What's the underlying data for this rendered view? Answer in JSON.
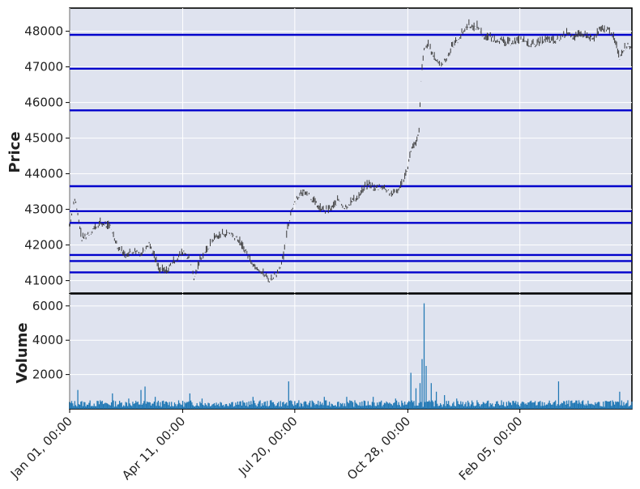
{
  "chart_data": {
    "type": "candlestick-volume",
    "panels": {
      "price": {
        "ylabel": "Price",
        "ylim": [
          40650,
          48650
        ],
        "yticks": [
          41000,
          42000,
          43000,
          44000,
          45000,
          46000,
          47000,
          48000
        ],
        "ytick_labels": [
          "41000",
          "42000",
          "43000",
          "44000",
          "45000",
          "46000",
          "47000",
          "48000"
        ],
        "grid": true,
        "background": "#dfe3ef",
        "line_color": "#3a3a3a",
        "series": [
          {
            "x": 0,
            "y": 42600
          },
          {
            "x": 5,
            "y": 43350
          },
          {
            "x": 12,
            "y": 42200
          },
          {
            "x": 20,
            "y": 42400
          },
          {
            "x": 30,
            "y": 42650
          },
          {
            "x": 40,
            "y": 42550
          },
          {
            "x": 48,
            "y": 41950
          },
          {
            "x": 55,
            "y": 41750
          },
          {
            "x": 62,
            "y": 41850
          },
          {
            "x": 70,
            "y": 41800
          },
          {
            "x": 78,
            "y": 42100
          },
          {
            "x": 82,
            "y": 41800
          },
          {
            "x": 88,
            "y": 41350
          },
          {
            "x": 95,
            "y": 41300
          },
          {
            "x": 103,
            "y": 41600
          },
          {
            "x": 112,
            "y": 41850
          },
          {
            "x": 118,
            "y": 41600
          },
          {
            "x": 122,
            "y": 41050
          },
          {
            "x": 128,
            "y": 41650
          },
          {
            "x": 135,
            "y": 41900
          },
          {
            "x": 142,
            "y": 42250
          },
          {
            "x": 150,
            "y": 42350
          },
          {
            "x": 158,
            "y": 42350
          },
          {
            "x": 165,
            "y": 42200
          },
          {
            "x": 172,
            "y": 41900
          },
          {
            "x": 180,
            "y": 41500
          },
          {
            "x": 188,
            "y": 41300
          },
          {
            "x": 196,
            "y": 41050
          },
          {
            "x": 204,
            "y": 41250
          },
          {
            "x": 210,
            "y": 41700
          },
          {
            "x": 214,
            "y": 42500
          },
          {
            "x": 218,
            "y": 43050
          },
          {
            "x": 224,
            "y": 43400
          },
          {
            "x": 232,
            "y": 43550
          },
          {
            "x": 240,
            "y": 43250
          },
          {
            "x": 246,
            "y": 43050
          },
          {
            "x": 252,
            "y": 43000
          },
          {
            "x": 258,
            "y": 43100
          },
          {
            "x": 264,
            "y": 43300
          },
          {
            "x": 270,
            "y": 43050
          },
          {
            "x": 276,
            "y": 43250
          },
          {
            "x": 282,
            "y": 43350
          },
          {
            "x": 288,
            "y": 43600
          },
          {
            "x": 294,
            "y": 43750
          },
          {
            "x": 300,
            "y": 43600
          },
          {
            "x": 306,
            "y": 43700
          },
          {
            "x": 312,
            "y": 43550
          },
          {
            "x": 318,
            "y": 43450
          },
          {
            "x": 324,
            "y": 43650
          },
          {
            "x": 328,
            "y": 43900
          },
          {
            "x": 332,
            "y": 44250
          },
          {
            "x": 336,
            "y": 44800
          },
          {
            "x": 340,
            "y": 44850
          },
          {
            "x": 343,
            "y": 45200
          },
          {
            "x": 345,
            "y": 46700
          },
          {
            "x": 348,
            "y": 47500
          },
          {
            "x": 352,
            "y": 47700
          },
          {
            "x": 356,
            "y": 47350
          },
          {
            "x": 360,
            "y": 47250
          },
          {
            "x": 364,
            "y": 47050
          },
          {
            "x": 368,
            "y": 47200
          },
          {
            "x": 372,
            "y": 47400
          },
          {
            "x": 376,
            "y": 47650
          },
          {
            "x": 380,
            "y": 47750
          },
          {
            "x": 386,
            "y": 48000
          },
          {
            "x": 392,
            "y": 48250
          },
          {
            "x": 396,
            "y": 48100
          },
          {
            "x": 400,
            "y": 48200
          },
          {
            "x": 406,
            "y": 47900
          },
          {
            "x": 412,
            "y": 47850
          },
          {
            "x": 420,
            "y": 47800
          },
          {
            "x": 428,
            "y": 47700
          },
          {
            "x": 436,
            "y": 47750
          },
          {
            "x": 444,
            "y": 47800
          },
          {
            "x": 452,
            "y": 47650
          },
          {
            "x": 460,
            "y": 47700
          },
          {
            "x": 468,
            "y": 47800
          },
          {
            "x": 476,
            "y": 47750
          },
          {
            "x": 484,
            "y": 47900
          },
          {
            "x": 490,
            "y": 48000
          },
          {
            "x": 496,
            "y": 47850
          },
          {
            "x": 502,
            "y": 47950
          },
          {
            "x": 508,
            "y": 47900
          },
          {
            "x": 514,
            "y": 47800
          },
          {
            "x": 520,
            "y": 48050
          },
          {
            "x": 526,
            "y": 48100
          },
          {
            "x": 532,
            "y": 48000
          },
          {
            "x": 536,
            "y": 47700
          },
          {
            "x": 540,
            "y": 47300
          },
          {
            "x": 544,
            "y": 47550
          },
          {
            "x": 548,
            "y": 47650
          },
          {
            "x": 552,
            "y": 47600
          }
        ],
        "n_points": 553,
        "hlines": [
          47900,
          46950,
          45780,
          43650,
          42950,
          42620,
          41720,
          41550,
          41230
        ],
        "hline_color": "#0000cc"
      },
      "volume": {
        "ylabel": "Volume",
        "ylim": [
          0,
          6700
        ],
        "yticks": [
          2000,
          4000,
          6000
        ],
        "ytick_labels": [
          "2000",
          "4000",
          "6000"
        ],
        "grid": true,
        "background": "#dfe3ef",
        "bar_color": "#1f77b4",
        "bars": [
          {
            "x": 8,
            "v": 1100
          },
          {
            "x": 30,
            "v": 500
          },
          {
            "x": 42,
            "v": 900
          },
          {
            "x": 58,
            "v": 600
          },
          {
            "x": 70,
            "v": 1100
          },
          {
            "x": 74,
            "v": 1300
          },
          {
            "x": 84,
            "v": 700
          },
          {
            "x": 118,
            "v": 900
          },
          {
            "x": 130,
            "v": 600
          },
          {
            "x": 160,
            "v": 400
          },
          {
            "x": 180,
            "v": 700
          },
          {
            "x": 198,
            "v": 500
          },
          {
            "x": 215,
            "v": 1600
          },
          {
            "x": 225,
            "v": 500
          },
          {
            "x": 250,
            "v": 700
          },
          {
            "x": 272,
            "v": 700
          },
          {
            "x": 298,
            "v": 700
          },
          {
            "x": 320,
            "v": 600
          },
          {
            "x": 335,
            "v": 2100
          },
          {
            "x": 340,
            "v": 1200
          },
          {
            "x": 344,
            "v": 1500
          },
          {
            "x": 346,
            "v": 2900
          },
          {
            "x": 348,
            "v": 6150
          },
          {
            "x": 350,
            "v": 2500
          },
          {
            "x": 355,
            "v": 1500
          },
          {
            "x": 360,
            "v": 1000
          },
          {
            "x": 368,
            "v": 800
          },
          {
            "x": 380,
            "v": 600
          },
          {
            "x": 400,
            "v": 500
          },
          {
            "x": 420,
            "v": 450
          },
          {
            "x": 440,
            "v": 400
          },
          {
            "x": 460,
            "v": 400
          },
          {
            "x": 480,
            "v": 1600
          },
          {
            "x": 500,
            "v": 500
          },
          {
            "x": 520,
            "v": 400
          },
          {
            "x": 540,
            "v": 1000
          },
          {
            "x": 548,
            "v": 500
          }
        ]
      }
    },
    "x_tick_labels": [
      "Jan 01, 00:00",
      "Apr 11, 00:00",
      "Jul 20, 00:00",
      "Oct 28, 00:00",
      "Feb 05, 00:00"
    ],
    "x_tick_positions": [
      0,
      111,
      221,
      332,
      442
    ]
  }
}
